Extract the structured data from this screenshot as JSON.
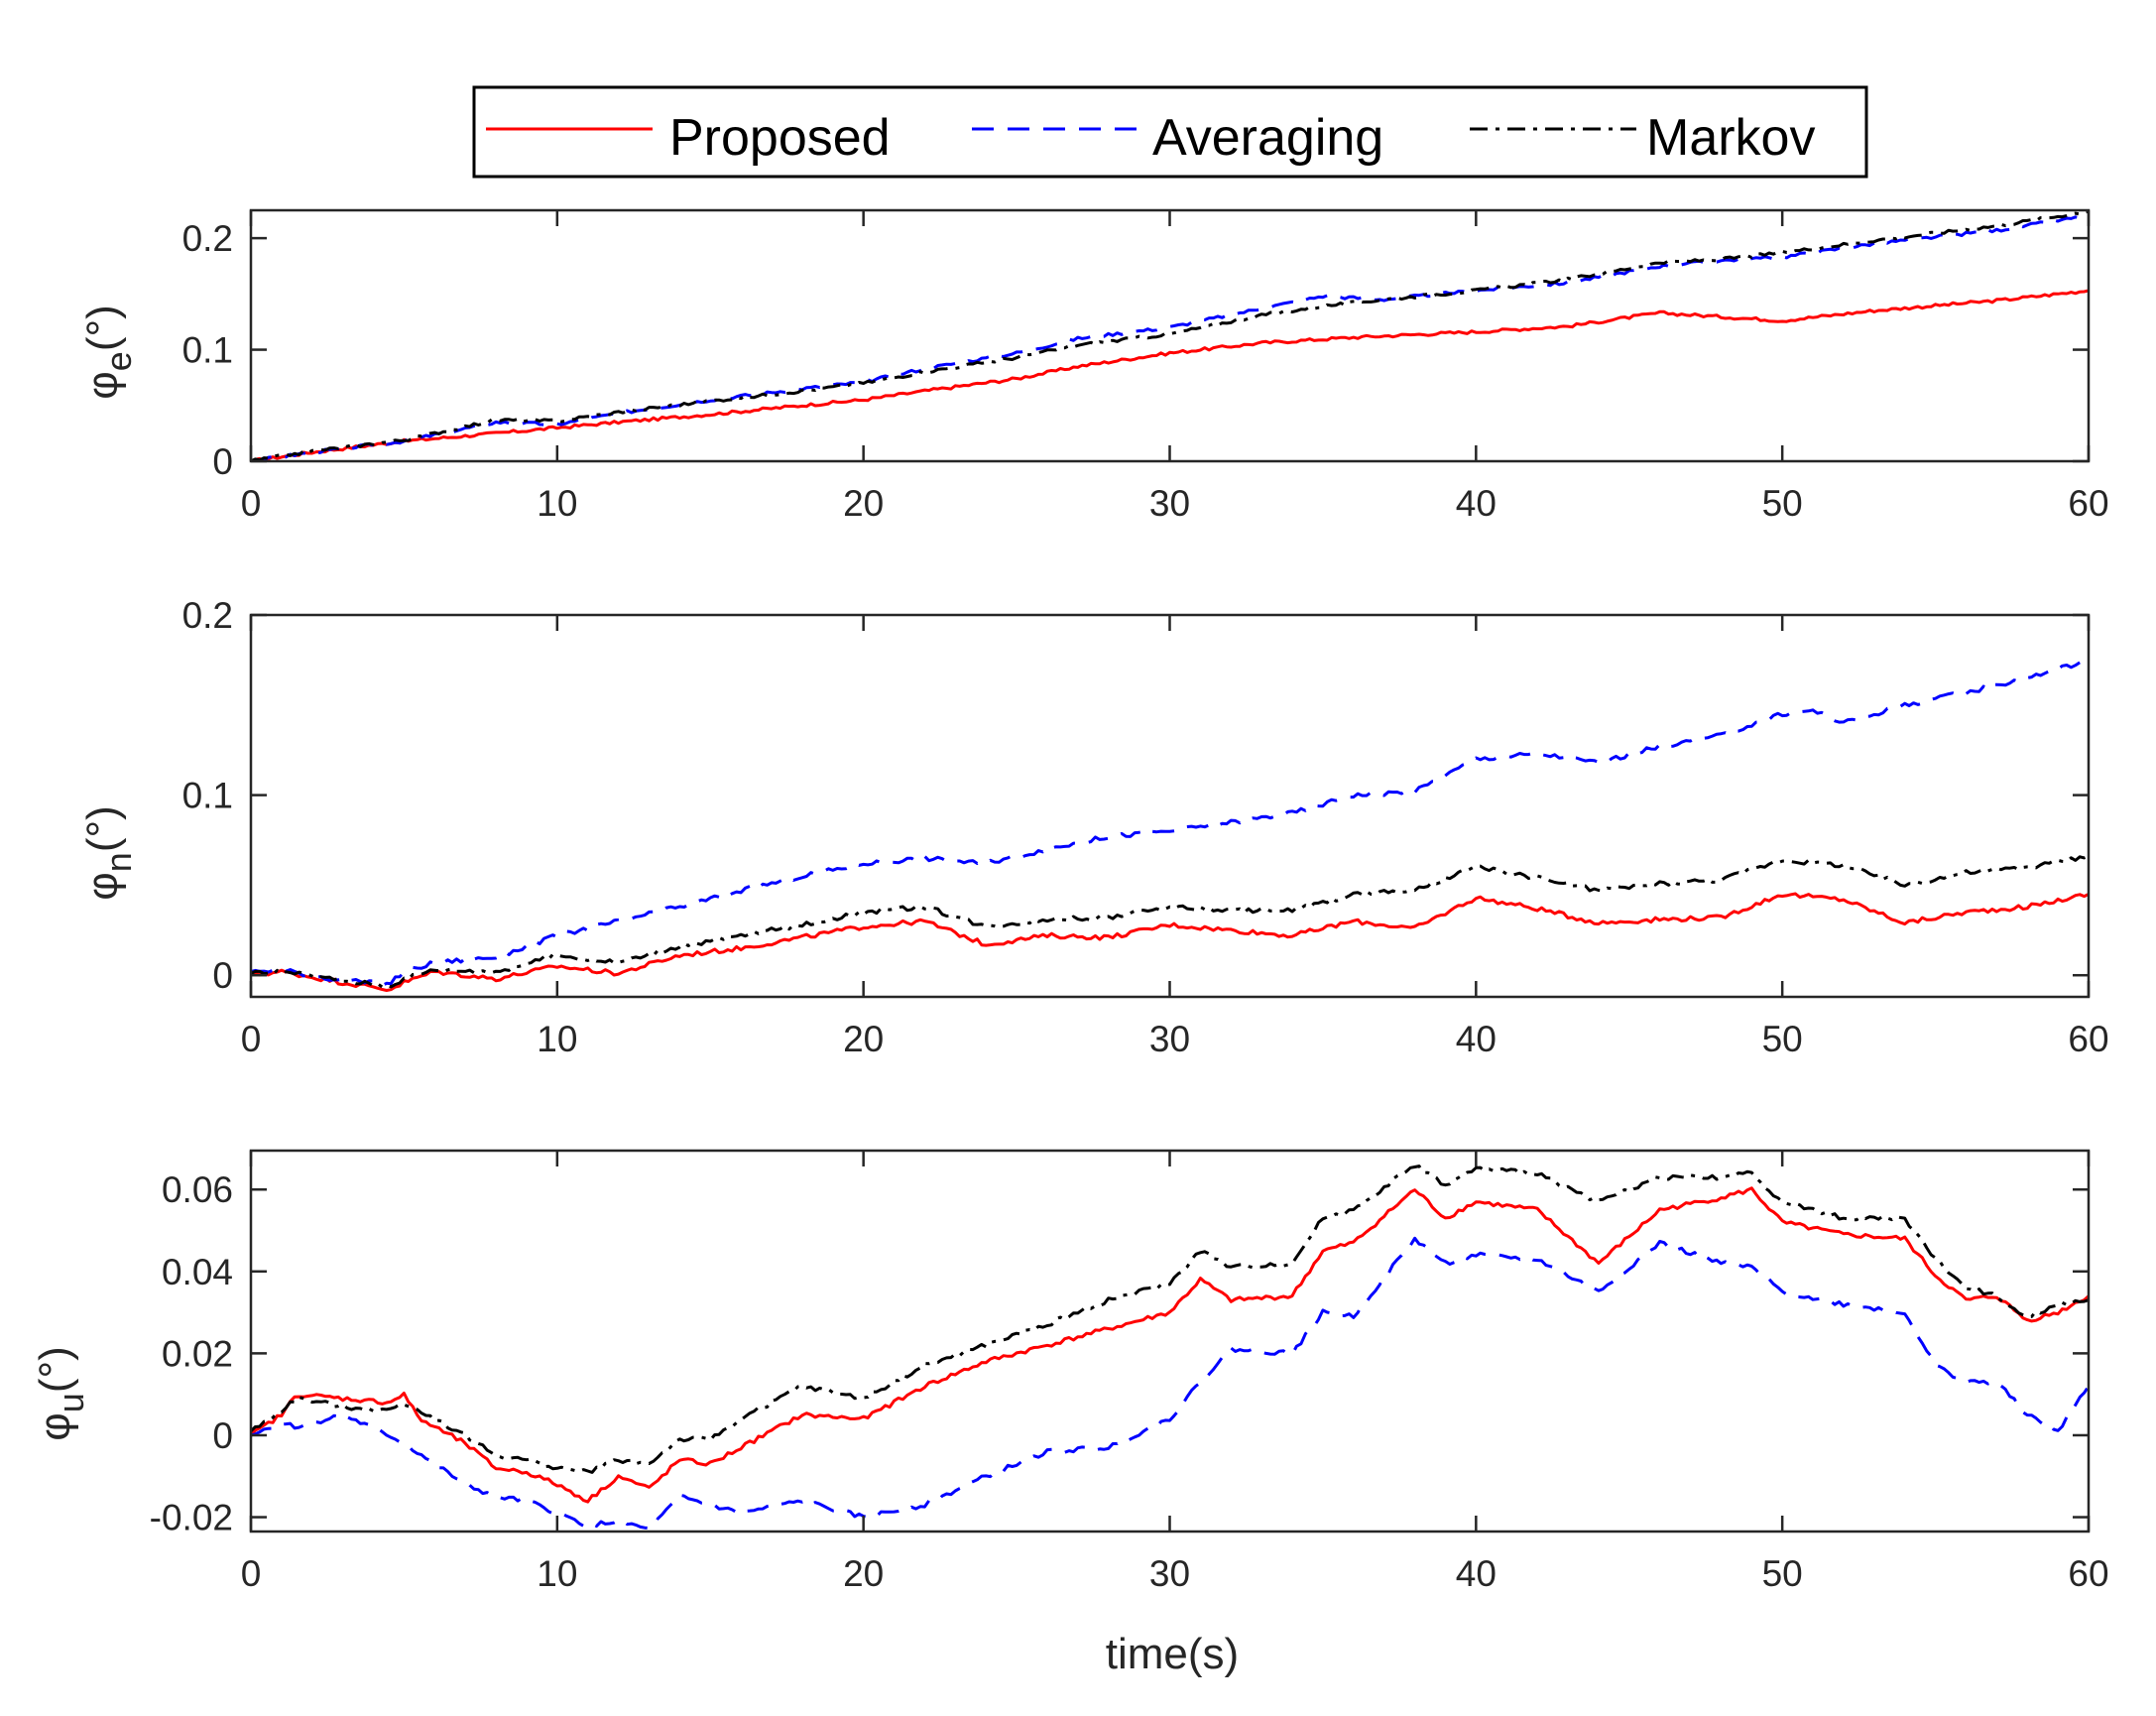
{
  "chart_data": {
    "type": "line",
    "legend": {
      "placement": "top-center",
      "entries": [
        {
          "name": "Proposed",
          "color": "#ff0000",
          "style": "solid"
        },
        {
          "name": "Averaging",
          "color": "#0000ff",
          "style": "dashed"
        },
        {
          "name": "Markov",
          "color": "#000000",
          "style": "dash-dot"
        }
      ]
    },
    "xlabel": "time(s)",
    "xlim": [
      0,
      60
    ],
    "xticks": [
      0,
      10,
      20,
      30,
      40,
      50,
      60
    ],
    "subplots": [
      {
        "ylabel_symbol": "φ",
        "ylabel_subscript": "e",
        "ylabel_unit": "(°)",
        "ylim": [
          0,
          0.225
        ],
        "yticks": [
          0,
          0.1,
          0.2
        ],
        "ytick_labels": [
          "0",
          "0.1",
          "0.2"
        ],
        "xtick_labels": [
          "0",
          "10",
          "20",
          "30",
          "40",
          "50",
          "60"
        ],
        "series": [
          {
            "name": "Proposed",
            "x": [
              0,
              2,
              5,
              8,
              10,
              12,
              15,
              18,
              20,
              22,
              25,
              27,
              30,
              33,
              36,
              40,
              43,
              46,
              50,
              53,
              57,
              60
            ],
            "y": [
              0,
              0.008,
              0.018,
              0.025,
              0.03,
              0.035,
              0.042,
              0.05,
              0.055,
              0.063,
              0.074,
              0.085,
              0.097,
              0.106,
              0.111,
              0.116,
              0.121,
              0.133,
              0.126,
              0.135,
              0.144,
              0.153
            ]
          },
          {
            "name": "Averaging",
            "x": [
              0,
              2,
              5,
              8,
              10,
              12,
              15,
              18,
              20,
              22,
              25,
              27,
              30,
              33,
              35,
              37,
              40,
              43,
              46,
              48,
              50,
              53,
              57,
              60
            ],
            "y": [
              0,
              0.008,
              0.018,
              0.035,
              0.033,
              0.043,
              0.055,
              0.065,
              0.071,
              0.083,
              0.097,
              0.11,
              0.12,
              0.137,
              0.148,
              0.145,
              0.153,
              0.16,
              0.175,
              0.18,
              0.183,
              0.195,
              0.207,
              0.22
            ]
          },
          {
            "name": "Markov",
            "x": [
              0,
              2,
              5,
              8,
              10,
              12,
              15,
              18,
              20,
              22,
              25,
              27,
              30,
              33,
              35,
              37,
              40,
              43,
              46,
              48,
              50,
              53,
              57,
              60
            ],
            "y": [
              0,
              0.009,
              0.019,
              0.037,
              0.036,
              0.044,
              0.054,
              0.063,
              0.07,
              0.08,
              0.093,
              0.104,
              0.114,
              0.131,
              0.139,
              0.145,
              0.153,
              0.163,
              0.178,
              0.181,
              0.187,
              0.198,
              0.211,
              0.224
            ]
          }
        ]
      },
      {
        "ylabel_symbol": "φ",
        "ylabel_subscript": "n",
        "ylabel_unit": "(°)",
        "ylim": [
          -0.012,
          0.2
        ],
        "yticks": [
          0,
          0.1,
          0.2
        ],
        "ytick_labels": [
          "0",
          "0.1",
          "0.2"
        ],
        "xtick_labels": [
          "0",
          "10",
          "20",
          "30",
          "40",
          "50",
          "60"
        ],
        "series": [
          {
            "name": "Proposed",
            "x": [
              0,
              1,
              3,
              4.5,
              5,
              6,
              8,
              10,
              12,
              14,
              16,
              18,
              20,
              22,
              24,
              26,
              28,
              30,
              32,
              34,
              36,
              38,
              40,
              42,
              44,
              46,
              48,
              50,
              52,
              54,
              56,
              58,
              60
            ],
            "y": [
              0,
              0.002,
              -0.004,
              -0.008,
              -0.004,
              0.002,
              -0.002,
              0.005,
              0.001,
              0.011,
              0.015,
              0.021,
              0.027,
              0.03,
              0.017,
              0.022,
              0.021,
              0.028,
              0.025,
              0.022,
              0.03,
              0.026,
              0.043,
              0.037,
              0.029,
              0.031,
              0.032,
              0.045,
              0.042,
              0.029,
              0.035,
              0.038,
              0.045
            ]
          },
          {
            "name": "Averaging",
            "x": [
              0,
              1,
              3,
              4.5,
              5,
              6,
              8,
              10,
              12,
              14,
              16,
              18,
              20,
              22,
              24,
              26,
              28,
              30,
              32,
              34,
              36,
              38,
              40,
              42,
              44,
              46,
              48,
              50,
              51,
              52,
              54,
              56,
              58,
              60
            ],
            "y": [
              0.002,
              0.003,
              -0.003,
              -0.005,
              0.002,
              0.007,
              0.01,
              0.022,
              0.03,
              0.038,
              0.047,
              0.055,
              0.062,
              0.065,
              0.062,
              0.07,
              0.077,
              0.08,
              0.085,
              0.09,
              0.1,
              0.102,
              0.12,
              0.123,
              0.118,
              0.127,
              0.133,
              0.145,
              0.147,
              0.14,
              0.15,
              0.157,
              0.165,
              0.175
            ]
          },
          {
            "name": "Markov",
            "x": [
              0,
              1,
              3,
              4.5,
              5,
              6,
              8,
              10,
              12,
              14,
              16,
              18,
              20,
              22,
              24,
              26,
              28,
              30,
              32,
              34,
              36,
              38,
              40,
              42,
              44,
              46,
              48,
              50,
              52,
              54,
              56,
              58,
              60
            ],
            "y": [
              0.001,
              0.002,
              -0.003,
              -0.006,
              -0.002,
              0.003,
              0.002,
              0.011,
              0.007,
              0.016,
              0.022,
              0.028,
              0.035,
              0.038,
              0.027,
              0.031,
              0.032,
              0.038,
              0.036,
              0.036,
              0.045,
              0.047,
              0.06,
              0.054,
              0.047,
              0.051,
              0.053,
              0.064,
              0.061,
              0.05,
              0.057,
              0.06,
              0.066
            ]
          }
        ]
      },
      {
        "ylabel_symbol": "φ",
        "ylabel_subscript": "u",
        "ylabel_unit": "(°)",
        "ylim": [
          -0.0235,
          0.0695
        ],
        "yticks": [
          -0.02,
          0,
          0.02,
          0.04,
          0.06
        ],
        "ytick_labels": [
          "-0.02",
          "0",
          "0.02",
          "0.04",
          "0.06"
        ],
        "xtick_labels": [
          "0",
          "10",
          "20",
          "30",
          "40",
          "50",
          "60"
        ],
        "series": [
          {
            "name": "Proposed",
            "x": [
              0,
              1,
              1.5,
              3,
              4.5,
              5,
              5.5,
              7,
              8,
              9,
              10,
              11,
              12,
              13,
              14,
              15,
              16,
              18,
              20,
              22,
              24,
              26,
              28,
              30,
              31,
              32,
              34,
              35,
              36,
              38,
              39,
              40,
              42,
              44,
              46,
              48,
              49,
              50,
              52,
              54,
              55,
              56,
              57,
              58,
              59,
              60
            ],
            "y": [
              0,
              0.005,
              0.01,
              0.009,
              0.008,
              0.01,
              0.004,
              -0.002,
              -0.008,
              -0.009,
              -0.012,
              -0.016,
              -0.01,
              -0.013,
              -0.006,
              -0.007,
              -0.003,
              0.005,
              0.004,
              0.012,
              0.018,
              0.022,
              0.026,
              0.03,
              0.038,
              0.033,
              0.034,
              0.045,
              0.047,
              0.06,
              0.053,
              0.057,
              0.055,
              0.042,
              0.055,
              0.058,
              0.06,
              0.052,
              0.049,
              0.048,
              0.039,
              0.033,
              0.034,
              0.028,
              0.03,
              0.034
            ]
          },
          {
            "name": "Averaging",
            "x": [
              0,
              1,
              1.5,
              3,
              4.5,
              5,
              6,
              7,
              8,
              9,
              10,
              11,
              12,
              13,
              14,
              15,
              16,
              18,
              20,
              22,
              24,
              26,
              28,
              30,
              31,
              32,
              34,
              35,
              36,
              38,
              39,
              40,
              42,
              44,
              46,
              48,
              49,
              50,
              52,
              54,
              55,
              56,
              57,
              58,
              59,
              60
            ],
            "y": [
              0,
              0.003,
              0.002,
              0.005,
              0,
              -0.002,
              -0.007,
              -0.012,
              -0.015,
              -0.016,
              -0.019,
              -0.022,
              -0.021,
              -0.023,
              -0.015,
              -0.017,
              -0.019,
              -0.016,
              -0.02,
              -0.017,
              -0.01,
              -0.004,
              -0.003,
              0.004,
              0.013,
              0.021,
              0.02,
              0.03,
              0.029,
              0.048,
              0.042,
              0.044,
              0.043,
              0.035,
              0.047,
              0.042,
              0.041,
              0.035,
              0.032,
              0.03,
              0.017,
              0.013,
              0.013,
              0.005,
              0.001,
              0.012
            ]
          },
          {
            "name": "Markov",
            "x": [
              0,
              1,
              1.5,
              3,
              4.5,
              5,
              5.5,
              7,
              8,
              9,
              10,
              11,
              12,
              13,
              14,
              15,
              16,
              18,
              20,
              22,
              24,
              26,
              28,
              30,
              31,
              32,
              34,
              35,
              36,
              38,
              39,
              40,
              42,
              44,
              46,
              48,
              49,
              50,
              52,
              54,
              55,
              56,
              57,
              58,
              59,
              60
            ],
            "y": [
              0.001,
              0.006,
              0.009,
              0.007,
              0.006,
              0.008,
              0.006,
              0,
              -0.005,
              -0.006,
              -0.008,
              -0.009,
              -0.006,
              -0.007,
              -0.001,
              -0.001,
              0.004,
              0.012,
              0.009,
              0.017,
              0.022,
              0.027,
              0.033,
              0.037,
              0.045,
              0.041,
              0.042,
              0.053,
              0.055,
              0.066,
              0.061,
              0.065,
              0.064,
              0.057,
              0.063,
              0.063,
              0.064,
              0.057,
              0.053,
              0.053,
              0.043,
              0.036,
              0.034,
              0.029,
              0.032,
              0.033
            ]
          }
        ]
      }
    ]
  }
}
